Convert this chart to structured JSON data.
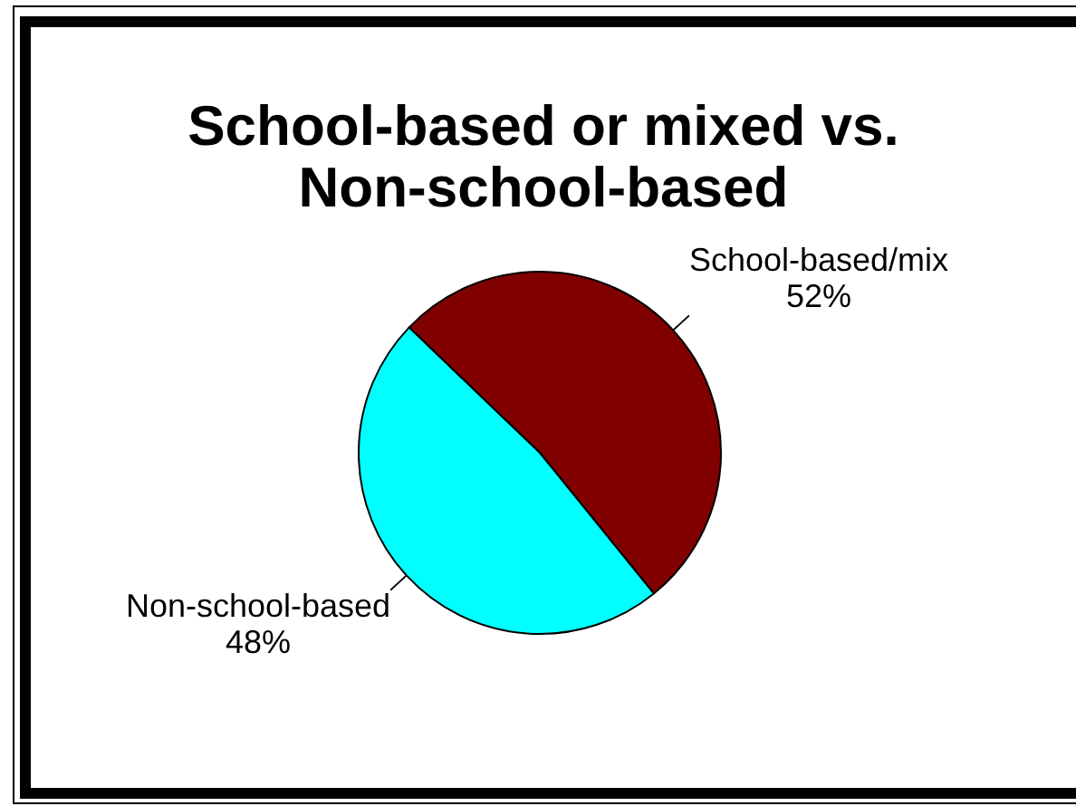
{
  "chart_data": {
    "type": "pie",
    "title": "School-based or mixed vs. Non-school-based",
    "categories": [
      "School-based/mix",
      "Non-school-based"
    ],
    "values": [
      52,
      48
    ],
    "colors": [
      "#800000",
      "#00ffff"
    ],
    "value_labels": [
      "52%",
      "48%"
    ]
  }
}
